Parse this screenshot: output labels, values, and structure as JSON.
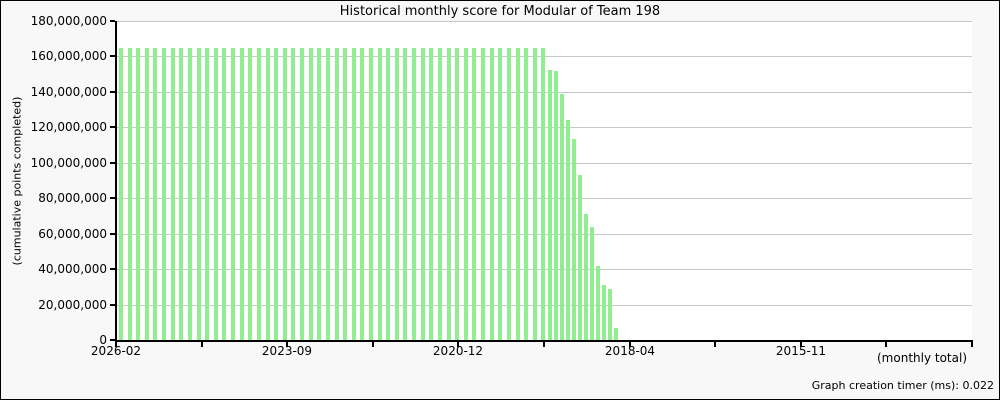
{
  "title": "Historical monthly score for Modular of Team 198",
  "y_axis": {
    "label": "(cumulative points completed)",
    "tick_labels": [
      "0",
      "20,000,000",
      "40,000,000",
      "60,000,000",
      "80,000,000",
      "100,000,000",
      "120,000,000",
      "140,000,000",
      "160,000,000",
      "180,000,000"
    ],
    "tick_values": [
      0,
      20000000,
      40000000,
      60000000,
      80000000,
      100000000,
      120000000,
      140000000,
      160000000,
      180000000
    ],
    "max": 180000000
  },
  "x_axis": {
    "label": "(monthly total)",
    "tick_labels": [
      "2026-02",
      "2023-09",
      "2020-12",
      "2018-04",
      "2015-11"
    ],
    "label_every_slots": 20,
    "minor_tick_every_slots": 10,
    "total_slots": 100
  },
  "footer": {
    "timer": "Graph creation timer (ms): 0.022"
  },
  "colors": {
    "bar": "#90EE90",
    "grid": "#c8c8c8",
    "axis": "#000000",
    "plot_bg": "#ffffff",
    "page_bg": "#f8f8f8"
  },
  "chart_data": {
    "type": "bar",
    "title": "Historical monthly score for Modular of Team 198",
    "xlabel": "(monthly total)",
    "ylabel": "(cumulative points completed)",
    "ylim": [
      0,
      180000000
    ],
    "grid": "horizontal",
    "legend": "none",
    "x_ticks": [
      "2026-02",
      "2023-09",
      "2020-12",
      "2018-04",
      "2015-11"
    ],
    "x_axis_direction": "newest-to-oldest",
    "values": [
      164800000,
      164800000,
      164800000,
      164800000,
      164800000,
      164800000,
      164800000,
      164800000,
      164800000,
      164800000,
      164800000,
      164800000,
      164800000,
      164800000,
      164800000,
      164800000,
      164800000,
      164800000,
      164800000,
      164800000,
      164800000,
      164800000,
      164800000,
      164800000,
      164800000,
      164800000,
      164800000,
      164800000,
      164800000,
      164800000,
      164800000,
      164800000,
      164800000,
      164800000,
      164800000,
      164800000,
      164800000,
      164800000,
      164800000,
      164800000,
      164800000,
      164800000,
      164800000,
      164800000,
      164800000,
      164800000,
      164800000,
      164800000,
      164800000,
      164800000,
      152500000,
      151900000,
      139000000,
      124000000,
      113500000,
      93000000,
      71000000,
      64000000,
      42000000,
      31000000,
      29000000,
      6500000
    ]
  }
}
